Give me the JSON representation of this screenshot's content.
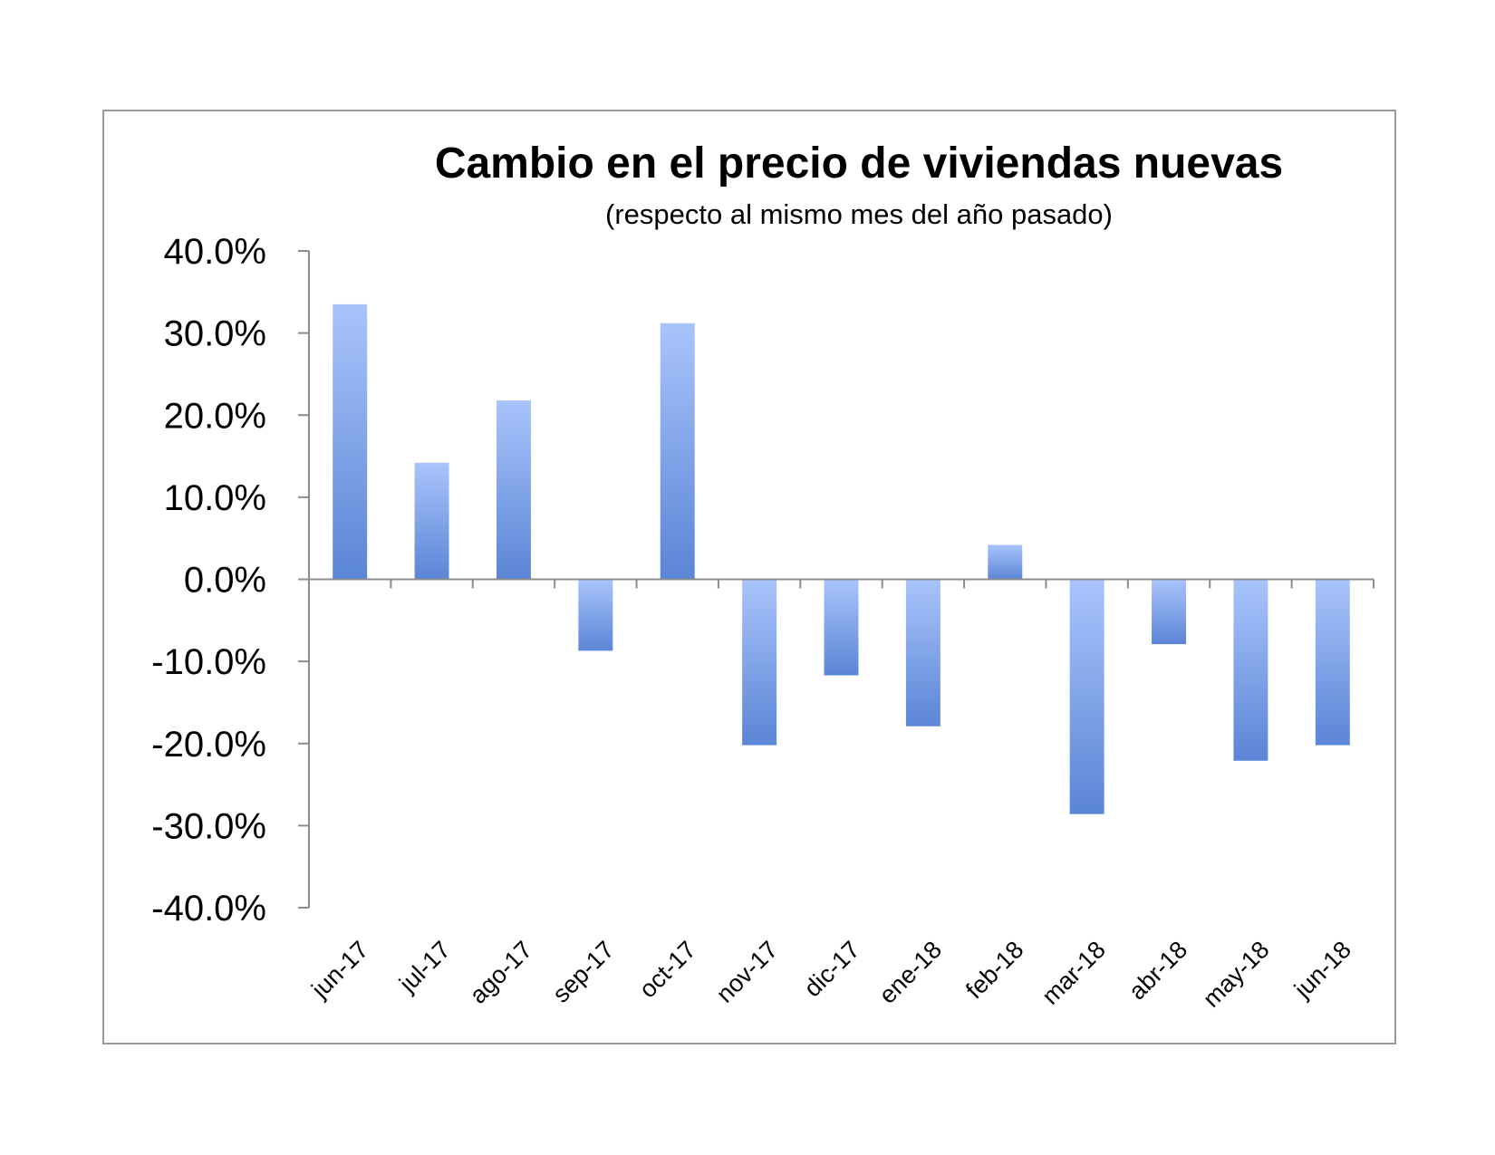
{
  "chart_data": {
    "type": "bar",
    "title": "Cambio en el precio de viviendas nuevas",
    "subtitle": "(respecto al mismo mes del año pasado)",
    "xlabel": "",
    "ylabel": "",
    "categories": [
      "jun-17",
      "jul-17",
      "ago-17",
      "sep-17",
      "oct-17",
      "nov-17",
      "dic-17",
      "ene-18",
      "feb-18",
      "mar-18",
      "abr-18",
      "may-18",
      "jun-18"
    ],
    "values": [
      33.5,
      14.2,
      21.8,
      -8.7,
      31.2,
      -20.2,
      -11.7,
      -17.9,
      4.2,
      -28.6,
      -7.9,
      -22.1,
      -20.2
    ],
    "yticks": [
      "40.0%",
      "30.0%",
      "20.0%",
      "10.0%",
      "0.0%",
      "-10.0%",
      "-20.0%",
      "-30.0%",
      "-40.0%"
    ],
    "ylim": [
      -40,
      40
    ],
    "grid": false,
    "legend": "none",
    "bar_color_light": "#a9c4fb",
    "bar_color_dark": "#5b85d6",
    "axis_color": "#8c8c8c"
  }
}
